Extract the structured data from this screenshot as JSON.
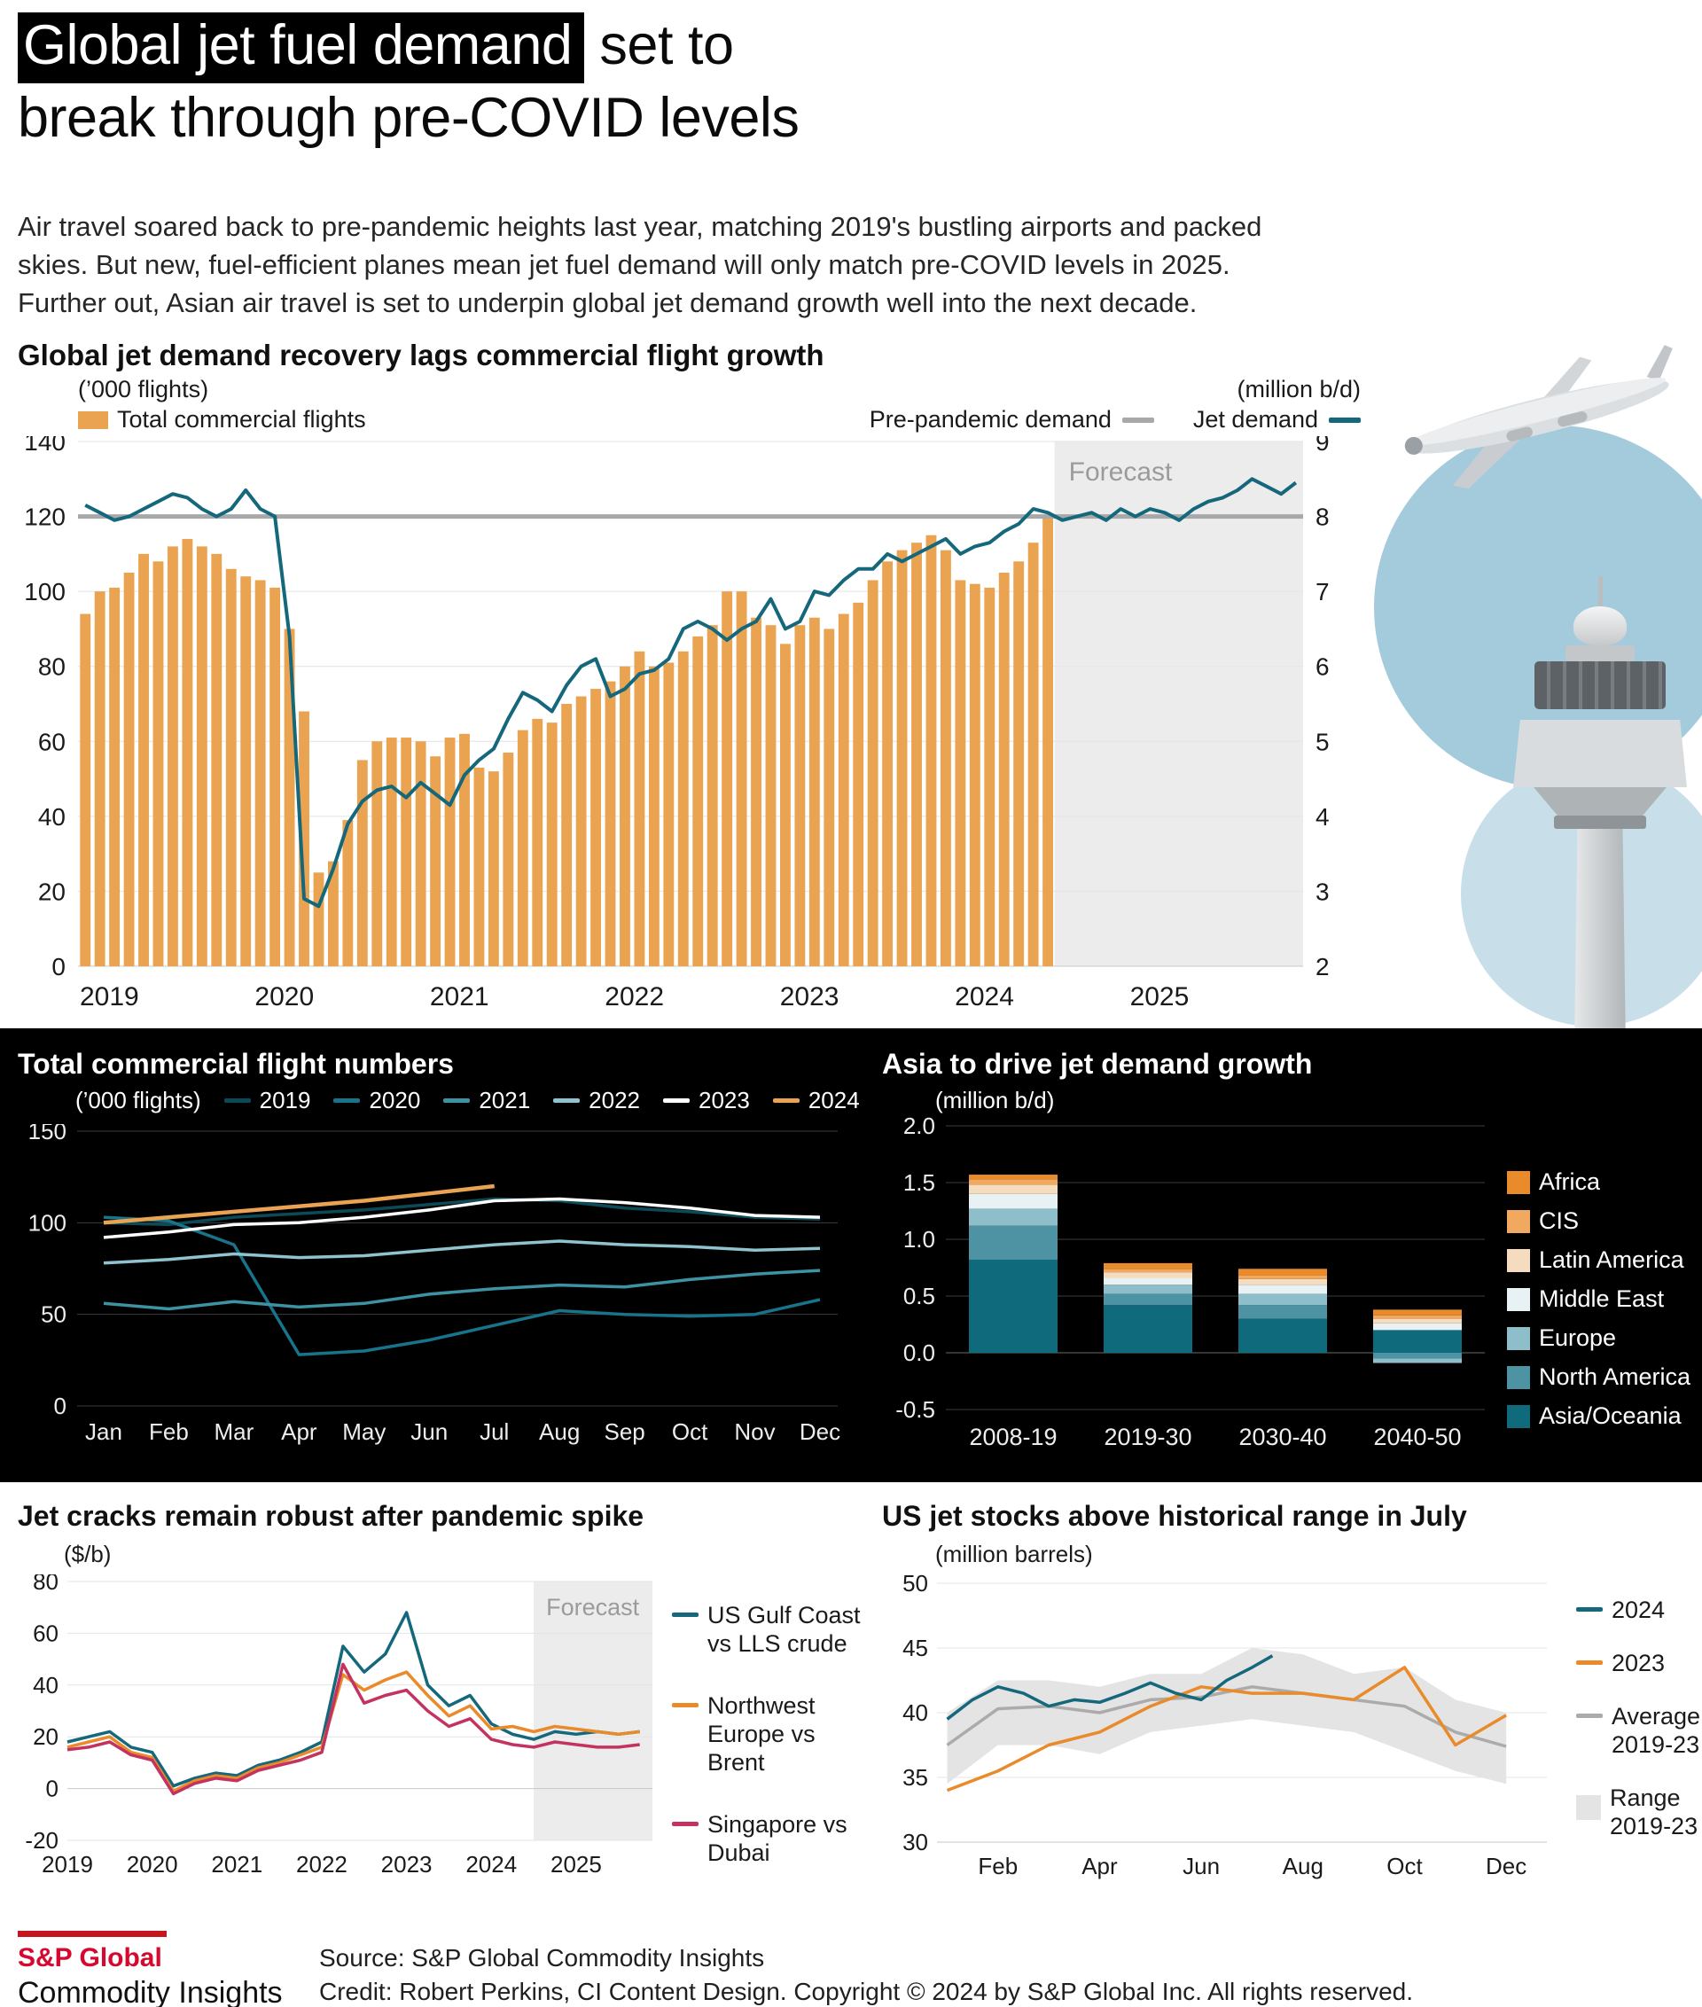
{
  "page": {
    "title_highlight": "Global jet fuel demand",
    "title_rest": " set to",
    "title_line2": "break through pre-COVID levels",
    "intro": "Air travel soared back to pre-pandemic heights last year, matching 2019's bustling airports and packed skies. But new, fuel-efficient planes mean jet fuel demand will only match pre-COVID levels in 2025. Further out, Asian air travel is set to underpin global jet demand growth well into the next decade.",
    "footer": {
      "brand_top": "S&P Global",
      "brand_bottom": "Commodity Insights",
      "source": "Source: S&P Global Commodity Insights",
      "credit": "Credit: Robert Perkins, CI Content Design.  Copyright © 2024 by S&P Global Inc.  All rights reserved."
    }
  },
  "colors": {
    "bar_orange": "#EAA351",
    "teal": "#15687B",
    "gray_line": "#A7A8AA",
    "forecast_bg": "#ECECEC",
    "magenta": "#C4325F",
    "orange_line": "#E98A2B",
    "brand_bar_red": "#C4161C",
    "brand_text_red": "#D6082F"
  },
  "chart_data": [
    {
      "id": "demand_vs_flights",
      "type": "bar+line",
      "title": "Global jet demand recovery lags commercial flight growth",
      "left_axis": {
        "label": "(’000 flights)",
        "ticks": [
          0,
          20,
          40,
          60,
          80,
          100,
          120,
          140
        ],
        "lim": [
          0,
          140
        ]
      },
      "right_axis": {
        "label": "(million b/d)",
        "ticks": [
          2,
          3,
          4,
          5,
          6,
          7,
          8,
          9
        ],
        "lim": [
          2,
          9
        ]
      },
      "x_ticks": [
        "2019",
        "2020",
        "2021",
        "2022",
        "2023",
        "2024",
        "2025"
      ],
      "x_range": [
        2019,
        2026
      ],
      "forecast": {
        "label": "Forecast",
        "start": 2024.58
      },
      "pre_pandemic_demand": 8.0,
      "legend": [
        {
          "label": "Total commercial flights",
          "swatch": "bar",
          "color": "#EAA351"
        },
        {
          "label": "Pre-pandemic demand",
          "swatch": "dash",
          "color": "#A7A8AA"
        },
        {
          "label": "Jet demand",
          "swatch": "dash",
          "color": "#15687B"
        }
      ],
      "flights_monthly": {
        "start": 2019.0,
        "values": [
          94,
          100,
          101,
          105,
          110,
          108,
          112,
          114,
          112,
          110,
          106,
          104,
          103,
          101,
          90,
          68,
          25,
          28,
          39,
          55,
          60,
          61,
          61,
          60,
          56,
          61,
          62,
          53,
          52,
          57,
          63,
          66,
          65,
          70,
          72,
          74,
          76,
          80,
          84,
          80,
          81,
          84,
          88,
          91,
          100,
          100,
          93,
          91,
          86,
          91,
          93,
          90,
          94,
          97,
          103,
          108,
          111,
          113,
          115,
          111,
          103,
          102,
          101,
          105,
          108,
          113,
          120
        ]
      },
      "jet_demand_monthly": {
        "start": 2019.0,
        "values": [
          8.15,
          8.05,
          7.95,
          8.0,
          8.1,
          8.2,
          8.3,
          8.25,
          8.1,
          8.0,
          8.1,
          8.35,
          8.1,
          8.0,
          6.4,
          2.9,
          2.8,
          3.3,
          3.9,
          4.2,
          4.35,
          4.4,
          4.25,
          4.45,
          4.3,
          4.15,
          4.55,
          4.75,
          4.9,
          5.3,
          5.65,
          5.55,
          5.4,
          5.75,
          6.0,
          6.1,
          5.6,
          5.7,
          5.9,
          5.95,
          6.1,
          6.5,
          6.6,
          6.5,
          6.35,
          6.5,
          6.6,
          6.9,
          6.5,
          6.6,
          7.0,
          6.95,
          7.15,
          7.3,
          7.3,
          7.5,
          7.4,
          7.5,
          7.6,
          7.7,
          7.5,
          7.6,
          7.65,
          7.8,
          7.9,
          8.1,
          8.05,
          7.95,
          8.0,
          8.05,
          7.95,
          8.1,
          8.0,
          8.1,
          8.05,
          7.95,
          8.1,
          8.2,
          8.25,
          8.35,
          8.5,
          8.4,
          8.3,
          8.45
        ]
      }
    },
    {
      "id": "flights_by_year",
      "type": "line",
      "title": "Total commercial flight numbers",
      "ylabel": "(’000 flights)",
      "ylim": [
        0,
        150
      ],
      "yticks": [
        0,
        50,
        100,
        150
      ],
      "categories": [
        "Jan",
        "Feb",
        "Mar",
        "Apr",
        "May",
        "Jun",
        "Jul",
        "Aug",
        "Sep",
        "Oct",
        "Nov",
        "Dec"
      ],
      "series": [
        {
          "name": "2019",
          "color": "#0C4A57",
          "values": [
            100,
            99,
            103,
            105,
            107,
            110,
            113,
            112,
            108,
            106,
            103,
            102
          ]
        },
        {
          "name": "2020",
          "color": "#17748A",
          "values": [
            103,
            101,
            88,
            28,
            30,
            36,
            44,
            52,
            50,
            49,
            50,
            58
          ]
        },
        {
          "name": "2021",
          "color": "#3D93A4",
          "values": [
            56,
            53,
            57,
            54,
            56,
            61,
            64,
            66,
            65,
            69,
            72,
            74
          ]
        },
        {
          "name": "2022",
          "color": "#8FC3CF",
          "values": [
            78,
            80,
            83,
            81,
            82,
            85,
            88,
            90,
            88,
            87,
            85,
            86
          ]
        },
        {
          "name": "2023",
          "color": "#FFFFFF",
          "values": [
            92,
            95,
            99,
            100,
            103,
            107,
            112,
            113,
            111,
            108,
            104,
            103
          ]
        },
        {
          "name": "2024",
          "color": "#E9A352",
          "values": [
            100,
            103,
            106,
            109,
            112,
            116,
            120
          ]
        }
      ]
    },
    {
      "id": "asia_growth",
      "type": "stacked_bar",
      "title": "Asia to drive jet demand growth",
      "ylabel": "(million b/d)",
      "ylim": [
        -0.5,
        2.0
      ],
      "yticks": [
        -0.5,
        0.0,
        0.5,
        1.0,
        1.5,
        2.0
      ],
      "categories": [
        "2008-19",
        "2019-30",
        "2030-40",
        "2040-50"
      ],
      "series": [
        {
          "name": "Asia/Oceania",
          "color": "#0F6A7C",
          "values": [
            0.82,
            0.42,
            0.3,
            0.2
          ]
        },
        {
          "name": "North America",
          "color": "#4E93A3",
          "values": [
            0.3,
            0.1,
            0.12,
            -0.05
          ]
        },
        {
          "name": "Europe",
          "color": "#8FBECB",
          "values": [
            0.15,
            0.08,
            0.1,
            -0.04
          ]
        },
        {
          "name": "Middle East",
          "color": "#E8F1F3",
          "values": [
            0.13,
            0.06,
            0.08,
            0.06
          ]
        },
        {
          "name": "Latin America",
          "color": "#F6DCBE",
          "values": [
            0.08,
            0.05,
            0.05,
            0.04
          ]
        },
        {
          "name": "CIS",
          "color": "#F0A95F",
          "values": [
            0.05,
            0.03,
            0.03,
            0.03
          ]
        },
        {
          "name": "Africa",
          "color": "#E98A2B",
          "values": [
            0.04,
            0.05,
            0.06,
            0.05
          ]
        }
      ],
      "legend_order": [
        "Africa",
        "CIS",
        "Latin America",
        "Middle East",
        "Europe",
        "North America",
        "Asia/Oceania"
      ]
    },
    {
      "id": "jet_cracks",
      "type": "line",
      "title": "Jet cracks remain robust after pandemic spike",
      "ylabel": "($/b)",
      "ylim": [
        -20,
        80
      ],
      "yticks": [
        -20,
        0,
        20,
        40,
        60,
        80
      ],
      "x_ticks": [
        "2019",
        "2020",
        "2021",
        "2022",
        "2023",
        "2024",
        "2025"
      ],
      "x_range": [
        2019,
        2025.9
      ],
      "forecast": {
        "label": "Forecast",
        "start": 2024.5
      },
      "series": [
        {
          "name": "US Gulf Coast vs LLS crude",
          "color": "#15687B",
          "x_start": 2019,
          "step": 0.25,
          "values": [
            18,
            20,
            22,
            16,
            14,
            1,
            4,
            6,
            5,
            9,
            11,
            14,
            18,
            55,
            45,
            52,
            68,
            40,
            32,
            36,
            25,
            21,
            19,
            22,
            21,
            22,
            21,
            22
          ]
        },
        {
          "name": "Northwest Europe vs Brent",
          "color": "#E98A2B",
          "x_start": 2019,
          "step": 0.25,
          "values": [
            16,
            18,
            20,
            14,
            12,
            -1,
            3,
            5,
            4,
            8,
            10,
            13,
            16,
            44,
            38,
            42,
            45,
            36,
            28,
            32,
            23,
            24,
            22,
            24,
            23,
            22,
            21,
            22
          ]
        },
        {
          "name": "Singapore vs Dubai",
          "color": "#C4325F",
          "x_start": 2019,
          "step": 0.25,
          "values": [
            15,
            16,
            18,
            13,
            11,
            -2,
            2,
            4,
            3,
            7,
            9,
            11,
            14,
            48,
            33,
            36,
            38,
            30,
            24,
            27,
            19,
            17,
            16,
            18,
            17,
            16,
            16,
            17
          ]
        }
      ]
    },
    {
      "id": "jet_stocks",
      "type": "line+band",
      "title": "US jet stocks above historical range in July",
      "ylabel": "(million barrels)",
      "ylim": [
        30,
        50
      ],
      "yticks": [
        30,
        35,
        40,
        45,
        50
      ],
      "x_ticks": [
        "Feb",
        "Apr",
        "Jun",
        "Aug",
        "Oct",
        "Dec"
      ],
      "x_tick_positions": [
        2,
        4,
        6,
        8,
        10,
        12
      ],
      "x_range": [
        0.8,
        12.8
      ],
      "band": {
        "name": "Range 2019-23",
        "color": "#E4E4E4",
        "x": [
          1,
          2,
          3,
          4,
          5,
          6,
          7,
          8,
          9,
          10,
          11,
          12
        ],
        "low": [
          34.5,
          37.5,
          37.5,
          36.8,
          38.5,
          39,
          39.5,
          39,
          38.5,
          37,
          35.5,
          34.5
        ],
        "high": [
          40,
          42.5,
          42.5,
          42,
          43,
          43,
          45,
          44.5,
          43,
          43.5,
          41,
          40
        ]
      },
      "series": [
        {
          "name": "2024",
          "color": "#15687B",
          "x": [
            1,
            1.5,
            2,
            2.5,
            3,
            3.5,
            4,
            4.5,
            5,
            5.5,
            6,
            6.5,
            7,
            7.4
          ],
          "values": [
            39.5,
            41,
            42,
            41.5,
            40.5,
            41,
            40.8,
            41.5,
            42.3,
            41.5,
            41,
            42.5,
            43.5,
            44.4
          ]
        },
        {
          "name": "2023",
          "color": "#E98A2B",
          "x": [
            1,
            2,
            3,
            4,
            5,
            6,
            7,
            8,
            9,
            10,
            11,
            12
          ],
          "values": [
            34,
            35.5,
            37.5,
            38.5,
            40.5,
            42,
            41.5,
            41.5,
            41,
            43.5,
            37.5,
            39.8
          ]
        },
        {
          "name": "Average 2019-23",
          "color": "#ABABAB",
          "x": [
            1,
            2,
            3,
            4,
            5,
            6,
            7,
            8,
            9,
            10,
            11,
            12
          ],
          "values": [
            37.5,
            40.3,
            40.5,
            40,
            41,
            41.2,
            42,
            41.5,
            41,
            40.5,
            38.5,
            37.4
          ]
        }
      ]
    }
  ]
}
